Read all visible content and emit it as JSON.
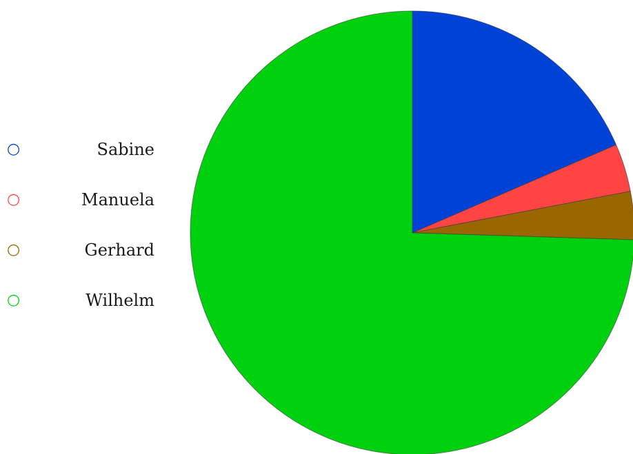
{
  "chart_data": {
    "type": "pie",
    "start_angle_deg": 0,
    "direction": "clockwise",
    "legend_position": "left",
    "slices": [
      {
        "label": "Sabine",
        "value": 18.5,
        "color": "#0043d6"
      },
      {
        "label": "Manuela",
        "value": 3.5,
        "color": "#ff4444"
      },
      {
        "label": "Gerhard",
        "value": 3.5,
        "color": "#996600"
      },
      {
        "label": "Wilhelm",
        "value": 74.5,
        "color": "#00d10e"
      }
    ],
    "marker_glyph": "○"
  }
}
